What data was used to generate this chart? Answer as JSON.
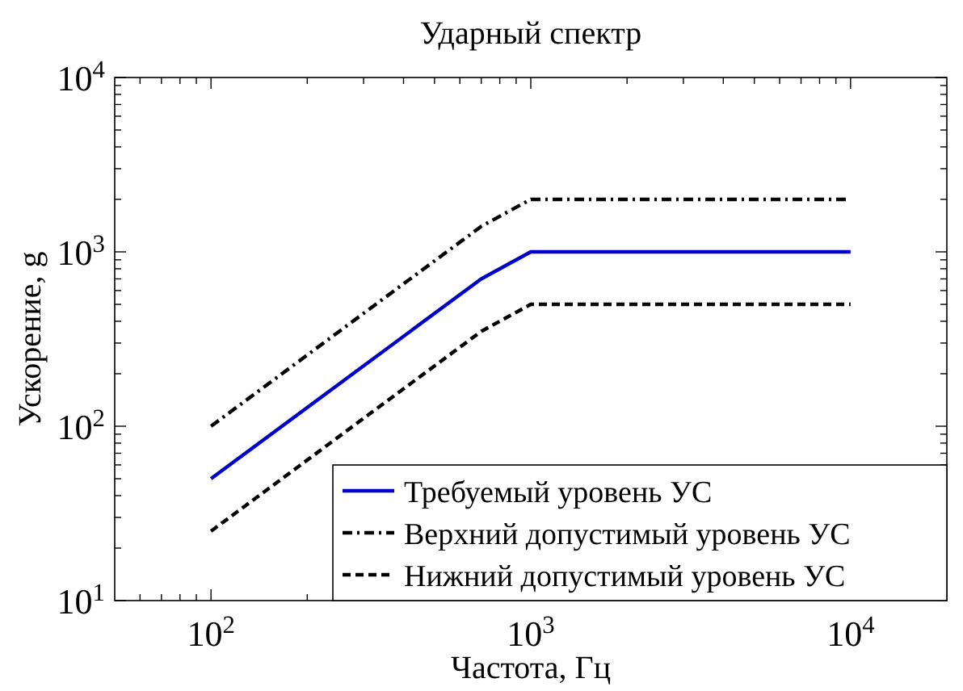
{
  "chart_data": {
    "type": "line",
    "title": "Ударный спектр",
    "xlabel": "Частота, Гц",
    "ylabel": "Ускорение, g",
    "log": "xy",
    "legend": "bottom right",
    "grid": false,
    "xlim": [
      50,
      20000
    ],
    "ylim": [
      10,
      10000
    ],
    "xticks": [
      {
        "value": 60,
        "label": null
      },
      {
        "value": 70,
        "label": null
      },
      {
        "value": 80,
        "label": null
      },
      {
        "value": 90,
        "label": null
      },
      {
        "value": 100,
        "label": "10$^{2}$"
      },
      {
        "value": 200,
        "label": null
      },
      {
        "value": 300,
        "label": null
      },
      {
        "value": 400,
        "label": null
      },
      {
        "value": 500,
        "label": null
      },
      {
        "value": 600,
        "label": null
      },
      {
        "value": 700,
        "label": null
      },
      {
        "value": 800,
        "label": null
      },
      {
        "value": 900,
        "label": null
      },
      {
        "value": 1000,
        "label": "10$^{3}$"
      },
      {
        "value": 2000,
        "label": null
      },
      {
        "value": 3000,
        "label": null
      },
      {
        "value": 4000,
        "label": null
      },
      {
        "value": 5000,
        "label": null
      },
      {
        "value": 6000,
        "label": null
      },
      {
        "value": 7000,
        "label": null
      },
      {
        "value": 8000,
        "label": null
      },
      {
        "value": 9000,
        "label": null
      },
      {
        "value": 10000,
        "label": "10$^{4}$"
      }
    ],
    "yticks": [
      {
        "value": 10,
        "label": "10$^{1}$"
      },
      {
        "value": 20,
        "label": null
      },
      {
        "value": 30,
        "label": null
      },
      {
        "value": 40,
        "label": null
      },
      {
        "value": 50,
        "label": null
      },
      {
        "value": 60,
        "label": null
      },
      {
        "value": 70,
        "label": null
      },
      {
        "value": 80,
        "label": null
      },
      {
        "value": 90,
        "label": null
      },
      {
        "value": 100,
        "label": "10$^{2}$"
      },
      {
        "value": 200,
        "label": null
      },
      {
        "value": 300,
        "label": null
      },
      {
        "value": 400,
        "label": null
      },
      {
        "value": 500,
        "label": null
      },
      {
        "value": 600,
        "label": null
      },
      {
        "value": 700,
        "label": null
      },
      {
        "value": 800,
        "label": null
      },
      {
        "value": 900,
        "label": null
      },
      {
        "value": 1000,
        "label": "10$^{3}$"
      },
      {
        "value": 2000,
        "label": null
      },
      {
        "value": 3000,
        "label": null
      },
      {
        "value": 4000,
        "label": null
      },
      {
        "value": 5000,
        "label": null
      },
      {
        "value": 6000,
        "label": null
      },
      {
        "value": 7000,
        "label": null
      },
      {
        "value": 8000,
        "label": null
      },
      {
        "value": 9000,
        "label": null
      },
      {
        "value": 10000,
        "label": "10$^{4}$"
      }
    ],
    "x": [
      100,
      700,
      1000,
      10000
    ],
    "series": [
      {
        "name": "Требуемый уровень УС",
        "color": "#0000cc",
        "line_style": "solid",
        "values": [
          50,
          700,
          1000,
          1000
        ]
      },
      {
        "name": "Верхний допустимый уровень УС",
        "color": "#000000",
        "line_style": "dashdot",
        "values": [
          100,
          1400,
          2000,
          2000
        ]
      },
      {
        "name": "Нижний допустимый уровень УС",
        "color": "#000000",
        "line_style": "dashed",
        "values": [
          25,
          350,
          500,
          500
        ]
      }
    ]
  }
}
